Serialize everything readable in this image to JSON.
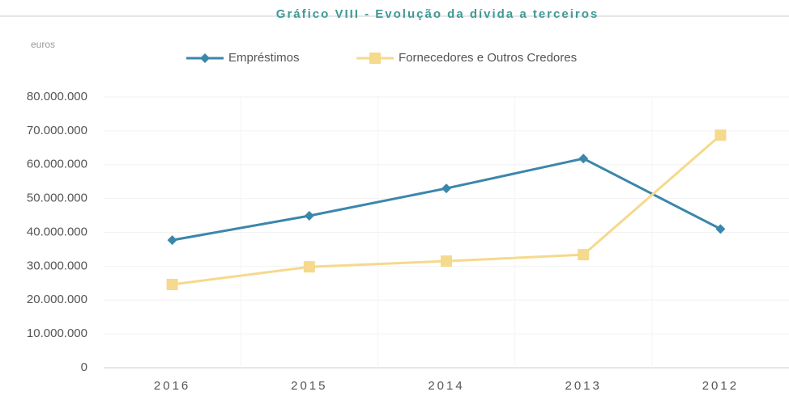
{
  "chart_data": {
    "type": "line",
    "title": "Gráfico VIII - Evolução da dívida a terceiros",
    "y_label": "euros",
    "categories": [
      "2016",
      "2015",
      "2014",
      "2013",
      "2012"
    ],
    "series": [
      {
        "name": "Empréstimos",
        "color": "#3b86ab",
        "marker": "diamond",
        "values": [
          37700000,
          44900000,
          53000000,
          61800000,
          41000000
        ]
      },
      {
        "name": "Fornecedores e Outros Credores",
        "color": "#f5d98c",
        "marker": "square",
        "values": [
          24600000,
          29800000,
          31500000,
          33400000,
          68700000
        ]
      }
    ],
    "ylim": [
      0,
      80000000
    ],
    "yticks": [
      0,
      {
        "value": 10000000,
        "label": "10.000.000"
      },
      {
        "value": 20000000,
        "label": "20.000.000"
      },
      {
        "value": 30000000,
        "label": "30.000.000"
      },
      {
        "value": 40000000,
        "label": "40.000.000"
      },
      {
        "value": 50000000,
        "label": "50.000.000"
      },
      {
        "value": 60000000,
        "label": "60.000.000"
      },
      {
        "value": 70000000,
        "label": "70.000.000"
      },
      {
        "value": 80000000,
        "label": "80.000.000"
      }
    ],
    "grid": true,
    "legend": "top"
  }
}
